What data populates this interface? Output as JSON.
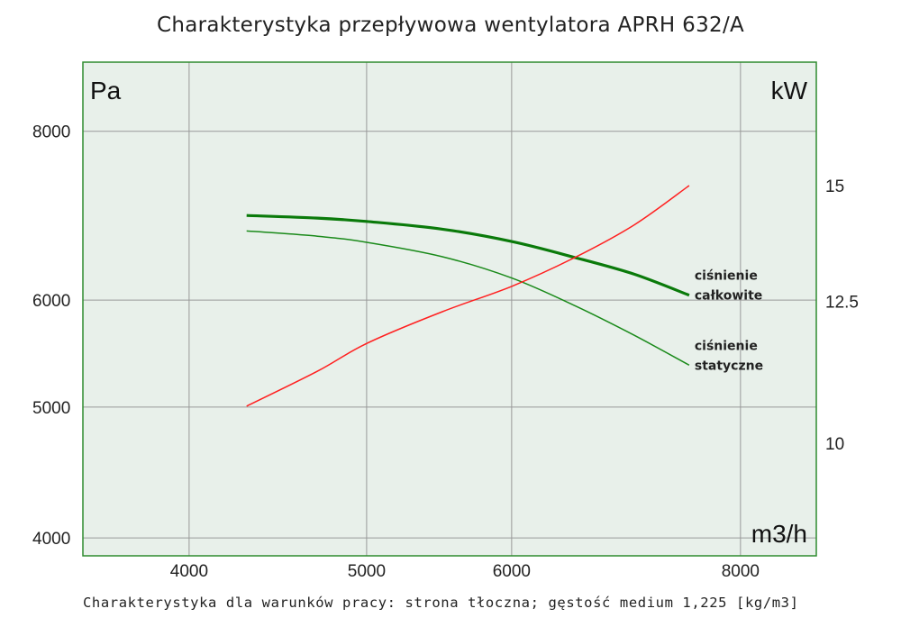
{
  "chart_data": {
    "type": "line",
    "title": "Charakterystyka przepływowa wentylatora APRH 632/A",
    "footnote": "Charakterystyka dla warunków pracy: strona tłoczna; gęstość medium 1,225 [kg/m3]",
    "x_scale": "log",
    "y_scale": "log",
    "xlim": [
      3500,
      8800
    ],
    "ylim_left": [
      3880,
      9000
    ],
    "xticks": [
      4000,
      5000,
      6000,
      8000
    ],
    "yticks_left": [
      4000,
      5000,
      6000,
      8000
    ],
    "yticks_right": [
      10,
      12.5,
      15
    ],
    "x_unit": "m3/h",
    "y_left_unit": "Pa",
    "y_right_unit": "kW",
    "grid": true,
    "colors": {
      "background": "#e8f0ea",
      "frame": "#2e8b2e",
      "grid": "#999999",
      "total_pressure": "#0a7a0a",
      "static_pressure": "#1a8a1a",
      "power": "#ff2020"
    },
    "series": [
      {
        "name": "ciśnienie całkowite",
        "axis": "left",
        "x": [
          4300,
          4700,
          5000,
          5500,
          6000,
          6500,
          7000,
          7500
        ],
        "y": [
          6930,
          6900,
          6860,
          6770,
          6630,
          6450,
          6270,
          6050
        ]
      },
      {
        "name": "ciśnienie statyczne",
        "axis": "left",
        "x": [
          4300,
          4700,
          5000,
          5500,
          6000,
          6500,
          7000,
          7500
        ],
        "y": [
          6750,
          6690,
          6620,
          6460,
          6230,
          5940,
          5650,
          5370
        ]
      },
      {
        "name": "",
        "axis": "right",
        "x": [
          4300,
          4700,
          5000,
          5500,
          6000,
          6500,
          7000,
          7500
        ],
        "y": [
          10.6,
          11.2,
          11.7,
          12.3,
          12.8,
          13.4,
          14.1,
          15.0
        ]
      }
    ],
    "annotations": [
      {
        "series": 0,
        "lines": [
          "ciśnienie",
          "całkowite"
        ]
      },
      {
        "series": 1,
        "lines": [
          "ciśnienie",
          "statyczne"
        ]
      }
    ]
  }
}
